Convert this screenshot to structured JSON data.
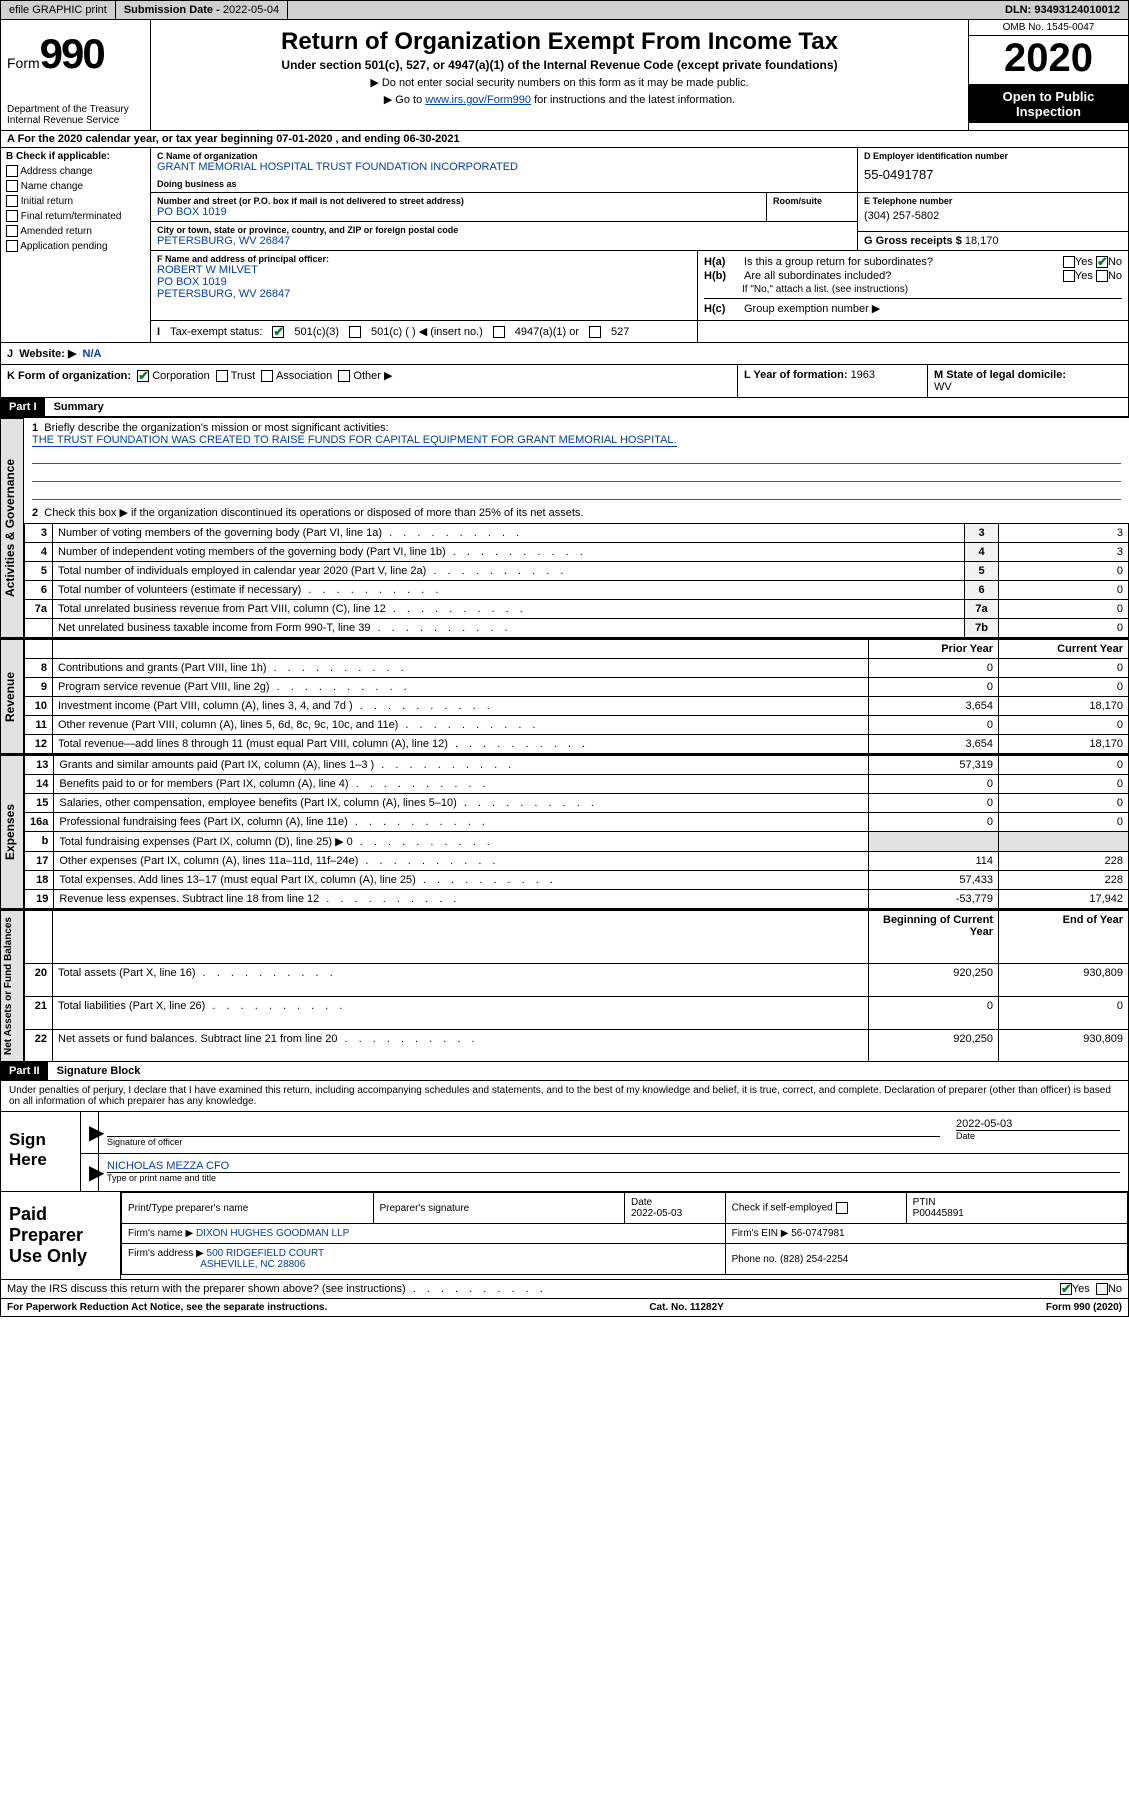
{
  "topbar": {
    "efile": "efile GRAPHIC print",
    "btn": "print",
    "sub_label": "Submission Date - ",
    "sub_date": "2022-05-04",
    "dln_label": "DLN: ",
    "dln": "93493124010012"
  },
  "header": {
    "form_label": "Form",
    "form_no": "990",
    "title": "Return of Organization Exempt From Income Tax",
    "subtitle": "Under section 501(c), 527, or 4947(a)(1) of the Internal Revenue Code (except private foundations)",
    "note1": "Do not enter social security numbers on this form as it may be made public.",
    "note2_pre": "Go to ",
    "note2_link": "www.irs.gov/Form990",
    "note2_post": " for instructions and the latest information.",
    "dept": "Department of the Treasury\nInternal Revenue Service",
    "omb": "OMB No. 1545-0047",
    "year": "2020",
    "open": "Open to Public Inspection"
  },
  "rowA": "A For the 2020 calendar year, or tax year beginning 07-01-2020     , and ending 06-30-2021",
  "colB": {
    "label": "B Check if applicable:",
    "items": [
      "Address change",
      "Name change",
      "Initial return",
      "Final return/terminated",
      "Amended return",
      "Application pending"
    ]
  },
  "org": {
    "name_cap": "C Name of organization",
    "name": "GRANT MEMORIAL HOSPITAL TRUST FOUNDATION INCORPORATED",
    "dba_cap": "Doing business as",
    "ein_cap": "D Employer identification number",
    "ein": "55-0491787",
    "street_cap": "Number and street (or P.O. box if mail is not delivered to street address)",
    "suite_cap": "Room/suite",
    "street": "PO BOX 1019",
    "city_cap": "City or town, state or province, country, and ZIP or foreign postal code",
    "city": "PETERSBURG, WV  26847",
    "tel_cap": "E Telephone number",
    "tel": "(304) 257-5802",
    "gross_cap": "G Gross receipts $ ",
    "gross": "18,170"
  },
  "officer": {
    "cap": "F  Name and address of principal officer:",
    "name": "ROBERT W MILVET",
    "addr1": "PO BOX 1019",
    "addr2": "PETERSBURG, WV  26847"
  },
  "h": {
    "a_label": "H(a)",
    "a_text": "Is this a group return for subordinates?",
    "b_label": "H(b)",
    "b_text": "Are all subordinates included?",
    "note": "If \"No,\" attach a list. (see instructions)",
    "c_label": "H(c)",
    "c_text": "Group exemption number ▶",
    "yes": "Yes",
    "no": "No"
  },
  "status": {
    "label_i": "I",
    "label": "Tax-exempt status:",
    "opt1": "501(c)(3)",
    "opt2": "501(c) (   ) ◀ (insert no.)",
    "opt3": "4947(a)(1) or",
    "opt4": "527"
  },
  "website": {
    "label": "J",
    "text": "Website: ▶",
    "val": "N/A"
  },
  "k": {
    "label": "K Form of organization:",
    "opts": [
      "Corporation",
      "Trust",
      "Association",
      "Other ▶"
    ],
    "l_label": "L Year of formation: ",
    "l_val": "1963",
    "m_label": "M State of legal domicile:",
    "m_val": "WV"
  },
  "part1": {
    "hdr": "Part I",
    "title": "Summary",
    "mission_label": "1   Briefly describe the organization's mission or most significant activities:",
    "mission": "THE TRUST FOUNDATION WAS CREATED TO RAISE FUNDS FOR CAPITAL EQUIPMENT FOR GRANT MEMORIAL HOSPITAL.",
    "line2": "Check this box ▶        if the organization discontinued its operations or disposed of more than 25% of its net assets.",
    "side1": "Activities & Governance",
    "side2": "Revenue",
    "side3": "Expenses",
    "side4": "Net Assets or Fund Balances",
    "col_prior": "Prior Year",
    "col_curr": "Current Year",
    "col_beg": "Beginning of Current Year",
    "col_end": "End of Year"
  },
  "lines_top": [
    {
      "n": "3",
      "t": "Number of voting members of the governing body (Part VI, line 1a)",
      "box": "3",
      "v": "3"
    },
    {
      "n": "4",
      "t": "Number of independent voting members of the governing body (Part VI, line 1b)",
      "box": "4",
      "v": "3"
    },
    {
      "n": "5",
      "t": "Total number of individuals employed in calendar year 2020 (Part V, line 2a)",
      "box": "5",
      "v": "0"
    },
    {
      "n": "6",
      "t": "Total number of volunteers (estimate if necessary)",
      "box": "6",
      "v": "0"
    },
    {
      "n": "7a",
      "t": "Total unrelated business revenue from Part VIII, column (C), line 12",
      "box": "7a",
      "v": "0"
    },
    {
      "n": "",
      "t": "Net unrelated business taxable income from Form 990-T, line 39",
      "box": "7b",
      "v": "0"
    }
  ],
  "lines_rev": [
    {
      "n": "8",
      "t": "Contributions and grants (Part VIII, line 1h)",
      "p": "0",
      "c": "0"
    },
    {
      "n": "9",
      "t": "Program service revenue (Part VIII, line 2g)",
      "p": "0",
      "c": "0"
    },
    {
      "n": "10",
      "t": "Investment income (Part VIII, column (A), lines 3, 4, and 7d )",
      "p": "3,654",
      "c": "18,170"
    },
    {
      "n": "11",
      "t": "Other revenue (Part VIII, column (A), lines 5, 6d, 8c, 9c, 10c, and 11e)",
      "p": "0",
      "c": "0"
    },
    {
      "n": "12",
      "t": "Total revenue—add lines 8 through 11 (must equal Part VIII, column (A), line 12)",
      "p": "3,654",
      "c": "18,170"
    }
  ],
  "lines_exp": [
    {
      "n": "13",
      "t": "Grants and similar amounts paid (Part IX, column (A), lines 1–3 )",
      "p": "57,319",
      "c": "0"
    },
    {
      "n": "14",
      "t": "Benefits paid to or for members (Part IX, column (A), line 4)",
      "p": "0",
      "c": "0"
    },
    {
      "n": "15",
      "t": "Salaries, other compensation, employee benefits (Part IX, column (A), lines 5–10)",
      "p": "0",
      "c": "0"
    },
    {
      "n": "16a",
      "t": "Professional fundraising fees (Part IX, column (A), line 11e)",
      "p": "0",
      "c": "0"
    },
    {
      "n": "b",
      "t": "Total fundraising expenses (Part IX, column (D), line 25) ▶ 0",
      "p": "",
      "c": ""
    },
    {
      "n": "17",
      "t": "Other expenses (Part IX, column (A), lines 11a–11d, 11f–24e)",
      "p": "114",
      "c": "228"
    },
    {
      "n": "18",
      "t": "Total expenses. Add lines 13–17 (must equal Part IX, column (A), line 25)",
      "p": "57,433",
      "c": "228"
    },
    {
      "n": "19",
      "t": "Revenue less expenses. Subtract line 18 from line 12",
      "p": "-53,779",
      "c": "17,942"
    }
  ],
  "lines_net": [
    {
      "n": "20",
      "t": "Total assets (Part X, line 16)",
      "p": "920,250",
      "c": "930,809"
    },
    {
      "n": "21",
      "t": "Total liabilities (Part X, line 26)",
      "p": "0",
      "c": "0"
    },
    {
      "n": "22",
      "t": "Net assets or fund balances. Subtract line 21 from line 20",
      "p": "920,250",
      "c": "930,809"
    }
  ],
  "part2": {
    "hdr": "Part II",
    "title": "Signature Block",
    "decl": "Under penalties of perjury, I declare that I have examined this return, including accompanying schedules and statements, and to the best of my knowledge and belief, it is true, correct, and complete. Declaration of preparer (other than officer) is based on all information of which preparer has any knowledge."
  },
  "sign": {
    "here": "Sign Here",
    "sig_label": "Signature of officer",
    "date": "2022-05-03",
    "date_label": "Date",
    "typed": "NICHOLAS MEZZA  CFO",
    "typed_label": "Type or print name and title"
  },
  "prep": {
    "label": "Paid Preparer Use Only",
    "h1": "Print/Type preparer's name",
    "h2": "Preparer's signature",
    "h3": "Date",
    "h3v": "2022-05-03",
    "h4": "Check        if self-employed",
    "h5": "PTIN",
    "h5v": "P00445891",
    "firm_label": "Firm's name     ▶",
    "firm": "DIXON HUGHES GOODMAN LLP",
    "ein_label": "Firm's EIN ▶ ",
    "ein": "56-0747981",
    "addr_label": "Firm's address ▶",
    "addr1": "500 RIDGEFIELD COURT",
    "addr2": "ASHEVILLE, NC  28806",
    "phone_label": "Phone no. ",
    "phone": "(828) 254-2254"
  },
  "discuss": {
    "text": "May the IRS discuss this return with the preparer shown above? (see instructions)",
    "yes": "Yes",
    "no": "No"
  },
  "footer": {
    "left": "For Paperwork Reduction Act Notice, see the separate instructions.",
    "mid": "Cat. No. 11282Y",
    "right": "Form 990 (2020)"
  }
}
